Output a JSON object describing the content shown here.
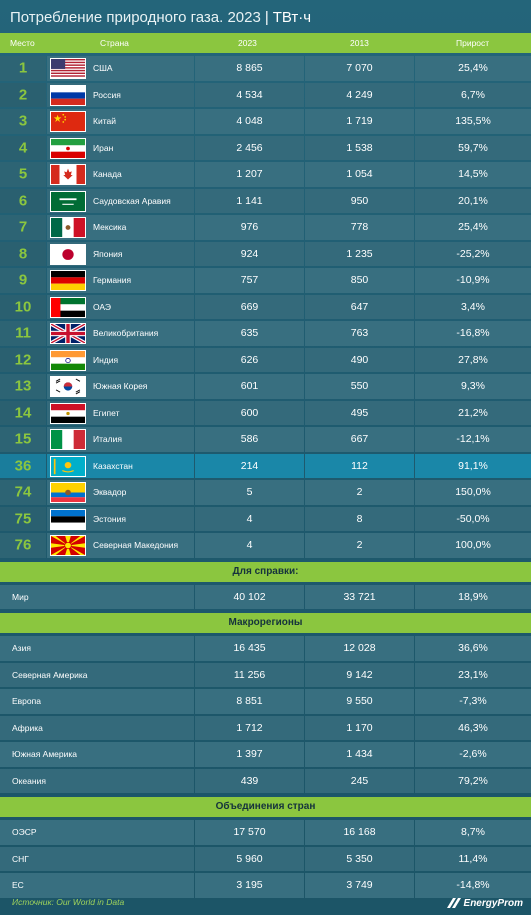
{
  "title": {
    "main": "Потребление природного газа. 2023",
    "separator": "|",
    "unit": "ТВт·ч"
  },
  "header": {
    "rank": "Место",
    "country": "Страна",
    "y2023": "2023",
    "y2013": "2013",
    "growth": "Прирост"
  },
  "countries": [
    {
      "rank": "1",
      "flag": "usa-flag-icon",
      "name": "США",
      "v2023": "8 865",
      "v2013": "7 070",
      "growth": "25,4%"
    },
    {
      "rank": "2",
      "flag": "russia-flag-icon",
      "name": "Россия",
      "v2023": "4 534",
      "v2013": "4 249",
      "growth": "6,7%"
    },
    {
      "rank": "3",
      "flag": "china-flag-icon",
      "name": "Китай",
      "v2023": "4 048",
      "v2013": "1 719",
      "growth": "135,5%"
    },
    {
      "rank": "4",
      "flag": "iran-flag-icon",
      "name": "Иран",
      "v2023": "2 456",
      "v2013": "1 538",
      "growth": "59,7%"
    },
    {
      "rank": "5",
      "flag": "canada-flag-icon",
      "name": "Канада",
      "v2023": "1 207",
      "v2013": "1 054",
      "growth": "14,5%"
    },
    {
      "rank": "6",
      "flag": "saudi-arabia-flag-icon",
      "name": "Саудовская Аравия",
      "v2023": "1 141",
      "v2013": "950",
      "growth": "20,1%"
    },
    {
      "rank": "7",
      "flag": "mexico-flag-icon",
      "name": "Мексика",
      "v2023": "976",
      "v2013": "778",
      "growth": "25,4%"
    },
    {
      "rank": "8",
      "flag": "japan-flag-icon",
      "name": "Япония",
      "v2023": "924",
      "v2013": "1 235",
      "growth": "-25,2%"
    },
    {
      "rank": "9",
      "flag": "germany-flag-icon",
      "name": "Германия",
      "v2023": "757",
      "v2013": "850",
      "growth": "-10,9%"
    },
    {
      "rank": "10",
      "flag": "uae-flag-icon",
      "name": "ОАЭ",
      "v2023": "669",
      "v2013": "647",
      "growth": "3,4%"
    },
    {
      "rank": "11",
      "flag": "uk-flag-icon",
      "name": "Великобритания",
      "v2023": "635",
      "v2013": "763",
      "growth": "-16,8%"
    },
    {
      "rank": "12",
      "flag": "india-flag-icon",
      "name": "Индия",
      "v2023": "626",
      "v2013": "490",
      "growth": "27,8%"
    },
    {
      "rank": "13",
      "flag": "south-korea-flag-icon",
      "name": "Южная Корея",
      "v2023": "601",
      "v2013": "550",
      "growth": "9,3%"
    },
    {
      "rank": "14",
      "flag": "egypt-flag-icon",
      "name": "Египет",
      "v2023": "600",
      "v2013": "495",
      "growth": "21,2%"
    },
    {
      "rank": "15",
      "flag": "italy-flag-icon",
      "name": "Италия",
      "v2023": "586",
      "v2013": "667",
      "growth": "-12,1%"
    },
    {
      "rank": "36",
      "flag": "kazakhstan-flag-icon",
      "name": "Казахстан",
      "v2023": "214",
      "v2013": "112",
      "growth": "91,1%",
      "highlight": true
    },
    {
      "rank": "74",
      "flag": "ecuador-flag-icon",
      "name": "Эквадор",
      "v2023": "5",
      "v2013": "2",
      "growth": "150,0%"
    },
    {
      "rank": "75",
      "flag": "estonia-flag-icon",
      "name": "Эстония",
      "v2023": "4",
      "v2013": "8",
      "growth": "-50,0%"
    },
    {
      "rank": "76",
      "flag": "north-macedonia-flag-icon",
      "name": "Северная Македония",
      "v2023": "4",
      "v2013": "2",
      "growth": "100,0%"
    }
  ],
  "reference": {
    "title": "Для справки:",
    "rows": [
      {
        "name": "Мир",
        "v2023": "40 102",
        "v2013": "33 721",
        "growth": "18,9%"
      }
    ]
  },
  "macroregions": {
    "title": "Макрорегионы",
    "rows": [
      {
        "name": "Азия",
        "v2023": "16 435",
        "v2013": "12 028",
        "growth": "36,6%"
      },
      {
        "name": "Северная Америка",
        "v2023": "11 256",
        "v2013": "9 142",
        "growth": "23,1%"
      },
      {
        "name": "Европа",
        "v2023": "8 851",
        "v2013": "9 550",
        "growth": "-7,3%"
      },
      {
        "name": "Африка",
        "v2023": "1 712",
        "v2013": "1 170",
        "growth": "46,3%"
      },
      {
        "name": "Южная Америка",
        "v2023": "1 397",
        "v2013": "1 434",
        "growth": "-2,6%"
      },
      {
        "name": "Океания",
        "v2023": "439",
        "v2013": "245",
        "growth": "79,2%"
      }
    ]
  },
  "unions": {
    "title": "Объединения стран",
    "rows": [
      {
        "name": "ОЭСР",
        "v2023": "17 570",
        "v2013": "16 168",
        "growth": "8,7%"
      },
      {
        "name": "СНГ",
        "v2023": "5 960",
        "v2013": "5 350",
        "growth": "11,4%"
      },
      {
        "name": "ЕС",
        "v2023": "3 195",
        "v2013": "3 749",
        "growth": "-14,8%"
      }
    ]
  },
  "footer": {
    "source": "Источник: Our World in Data",
    "brand": "EnergyProm",
    "brand_icon": "energyprom-logo-icon"
  },
  "colors": {
    "accent_green": "#8bc63f",
    "background": "#1f5a70",
    "highlight": "#1a87a8"
  },
  "chart_data": {
    "type": "table",
    "title": "Потребление природного газа. 2023 | ТВт·ч",
    "columns": [
      "Место",
      "Страна",
      "2023",
      "2013",
      "Прирост"
    ],
    "rows": [
      [
        "1",
        "США",
        8865,
        7070,
        25.4
      ],
      [
        "2",
        "Россия",
        4534,
        4249,
        6.7
      ],
      [
        "3",
        "Китай",
        4048,
        1719,
        135.5
      ],
      [
        "4",
        "Иран",
        2456,
        1538,
        59.7
      ],
      [
        "5",
        "Канада",
        1207,
        1054,
        14.5
      ],
      [
        "6",
        "Саудовская Аравия",
        1141,
        950,
        20.1
      ],
      [
        "7",
        "Мексика",
        976,
        778,
        25.4
      ],
      [
        "8",
        "Япония",
        924,
        1235,
        -25.2
      ],
      [
        "9",
        "Германия",
        757,
        850,
        -10.9
      ],
      [
        "10",
        "ОАЭ",
        669,
        647,
        3.4
      ],
      [
        "11",
        "Великобритания",
        635,
        763,
        -16.8
      ],
      [
        "12",
        "Индия",
        626,
        490,
        27.8
      ],
      [
        "13",
        "Южная Корея",
        601,
        550,
        9.3
      ],
      [
        "14",
        "Египет",
        600,
        495,
        21.2
      ],
      [
        "15",
        "Италия",
        586,
        667,
        -12.1
      ],
      [
        "36",
        "Казахстан",
        214,
        112,
        91.1
      ],
      [
        "74",
        "Эквадор",
        5,
        2,
        150.0
      ],
      [
        "75",
        "Эстония",
        4,
        8,
        -50.0
      ],
      [
        "76",
        "Северная Македония",
        4,
        2,
        100.0
      ]
    ],
    "reference_rows": [
      [
        "Мир",
        40102,
        33721,
        18.9
      ]
    ],
    "macroregion_rows": [
      [
        "Азия",
        16435,
        12028,
        36.6
      ],
      [
        "Северная Америка",
        11256,
        9142,
        23.1
      ],
      [
        "Европа",
        8851,
        9550,
        -7.3
      ],
      [
        "Африка",
        1712,
        1170,
        46.3
      ],
      [
        "Южная Америка",
        1397,
        1434,
        -2.6
      ],
      [
        "Океания",
        439,
        245,
        79.2
      ]
    ],
    "union_rows": [
      [
        "ОЭСР",
        17570,
        16168,
        8.7
      ],
      [
        "СНГ",
        5960,
        5350,
        11.4
      ],
      [
        "ЕС",
        3195,
        3749,
        -14.8
      ]
    ]
  }
}
